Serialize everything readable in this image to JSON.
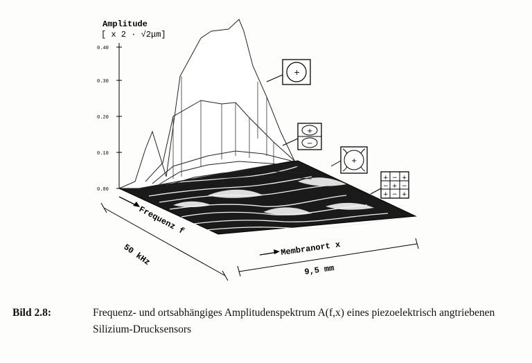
{
  "figure": {
    "y_axis_title": "Amplitude",
    "y_axis_unit": "[ x 2 · √2μm]",
    "y_ticks": [
      "0.00",
      "0.10",
      "0.20",
      "0.30",
      "0.40"
    ],
    "freq_axis_label": "Frequenz f",
    "freq_span_label": "50 kHz",
    "x_axis_label": "Membranort x",
    "x_span_label": "9,5 mm",
    "mode_symbols": {
      "mode1": [
        "+"
      ],
      "mode2": [
        "+",
        "−"
      ],
      "mode3": [
        "+"
      ],
      "mode4": [
        "+",
        "−",
        "+",
        "−",
        "+",
        "−",
        "+",
        "−",
        "+"
      ]
    }
  },
  "caption": {
    "label": "Bild 2.8:",
    "text": "Frequenz- und ortsabhängiges Amplitudenspektrum A(f,x) eines piezoelektrisch angtriebenen Silizium-Drucksensors"
  }
}
